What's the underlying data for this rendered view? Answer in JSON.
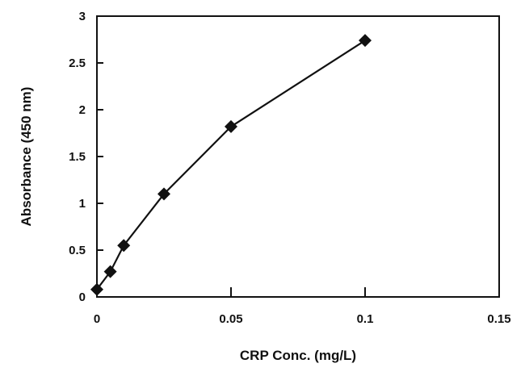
{
  "chart_data": {
    "type": "line",
    "title": "",
    "xlabel": "CRP Conc. (mg/L)",
    "ylabel": "Absorbance (450 nm)",
    "xlim": [
      0,
      0.15
    ],
    "ylim": [
      0,
      3
    ],
    "x_ticks": [
      0,
      0.05,
      0.1,
      0.15
    ],
    "x_tick_labels": [
      "0",
      "0.05",
      "0.1",
      "0.15"
    ],
    "y_ticks": [
      0,
      0.5,
      1,
      1.5,
      2,
      2.5,
      3
    ],
    "y_tick_labels": [
      "0",
      "0.5",
      "1",
      "1.5",
      "2",
      "2.5",
      "3"
    ],
    "grid": false,
    "legend": "none",
    "marker": "diamond",
    "series": [
      {
        "color": "#111111",
        "points": [
          {
            "x": 0,
            "y": 0.08
          },
          {
            "x": 0.005,
            "y": 0.27
          },
          {
            "x": 0.01,
            "y": 0.55
          },
          {
            "x": 0.025,
            "y": 1.1
          },
          {
            "x": 0.05,
            "y": 1.82
          },
          {
            "x": 0.1,
            "y": 2.74
          }
        ]
      }
    ]
  }
}
